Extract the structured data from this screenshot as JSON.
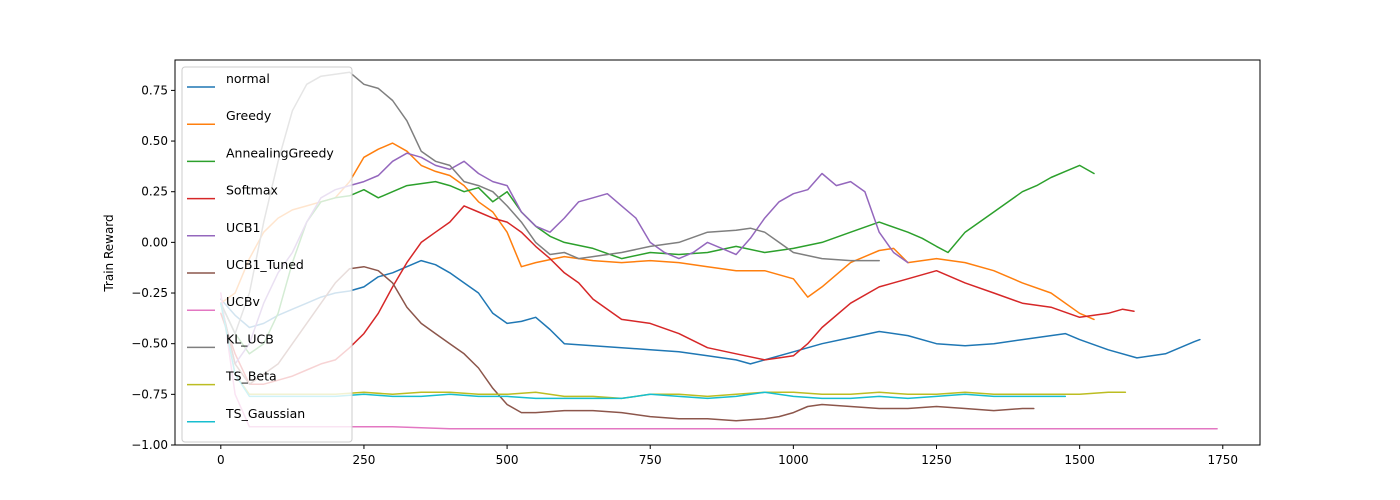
{
  "chart_data": {
    "type": "line",
    "title": "",
    "xlabel": "",
    "ylabel": "Train Reward",
    "xlim": [
      -80,
      1815
    ],
    "ylim": [
      -1.0,
      0.9
    ],
    "xticks": [
      {
        "value": 0,
        "label": "0"
      },
      {
        "value": 250,
        "label": "250"
      },
      {
        "value": 500,
        "label": "500"
      },
      {
        "value": 750,
        "label": "750"
      },
      {
        "value": 1000,
        "label": "1000"
      },
      {
        "value": 1250,
        "label": "1250"
      },
      {
        "value": 1500,
        "label": "1500"
      },
      {
        "value": 1750,
        "label": "1750"
      }
    ],
    "yticks": [
      {
        "value": -1.0,
        "label": "−1.00"
      },
      {
        "value": -0.75,
        "label": "−0.75"
      },
      {
        "value": -0.5,
        "label": "−0.50"
      },
      {
        "value": -0.25,
        "label": "−0.25"
      },
      {
        "value": 0.0,
        "label": "0.00"
      },
      {
        "value": 0.25,
        "label": "0.25"
      },
      {
        "value": 0.5,
        "label": "0.50"
      },
      {
        "value": 0.75,
        "label": "0.75"
      }
    ],
    "grid": false,
    "legend_position": "upper-left",
    "series": [
      {
        "name": "normal",
        "color": "#1f77b4",
        "x": [
          0,
          25,
          50,
          75,
          100,
          125,
          150,
          175,
          200,
          225,
          250,
          275,
          300,
          325,
          350,
          375,
          400,
          425,
          450,
          475,
          500,
          525,
          550,
          575,
          600,
          650,
          700,
          750,
          800,
          850,
          900,
          925,
          950,
          1000,
          1050,
          1100,
          1150,
          1200,
          1250,
          1300,
          1350,
          1400,
          1450,
          1475,
          1500,
          1550,
          1600,
          1650,
          1700,
          1710
        ],
        "y": [
          -0.28,
          -0.36,
          -0.42,
          -0.4,
          -0.36,
          -0.33,
          -0.3,
          -0.27,
          -0.25,
          -0.24,
          -0.22,
          -0.17,
          -0.15,
          -0.12,
          -0.09,
          -0.11,
          -0.15,
          -0.2,
          -0.25,
          -0.35,
          -0.4,
          -0.39,
          -0.37,
          -0.43,
          -0.5,
          -0.51,
          -0.52,
          -0.53,
          -0.54,
          -0.56,
          -0.58,
          -0.6,
          -0.58,
          -0.54,
          -0.5,
          -0.47,
          -0.44,
          -0.46,
          -0.5,
          -0.51,
          -0.5,
          -0.48,
          -0.46,
          -0.45,
          -0.48,
          -0.53,
          -0.57,
          -0.55,
          -0.49,
          -0.48
        ]
      },
      {
        "name": "Greedy",
        "color": "#ff7f0e",
        "x": [
          0,
          25,
          50,
          75,
          100,
          125,
          150,
          175,
          200,
          225,
          250,
          275,
          300,
          325,
          350,
          375,
          400,
          425,
          450,
          475,
          500,
          525,
          550,
          600,
          650,
          700,
          750,
          800,
          850,
          900,
          950,
          1000,
          1025,
          1050,
          1100,
          1150,
          1175,
          1200,
          1250,
          1300,
          1350,
          1400,
          1450,
          1500,
          1525
        ],
        "y": [
          -0.3,
          -0.25,
          -0.08,
          0.05,
          0.12,
          0.16,
          0.18,
          0.2,
          0.22,
          0.3,
          0.42,
          0.46,
          0.49,
          0.45,
          0.38,
          0.35,
          0.33,
          0.28,
          0.2,
          0.15,
          0.05,
          -0.12,
          -0.1,
          -0.07,
          -0.09,
          -0.1,
          -0.09,
          -0.1,
          -0.12,
          -0.14,
          -0.14,
          -0.18,
          -0.27,
          -0.22,
          -0.1,
          -0.04,
          -0.03,
          -0.1,
          -0.08,
          -0.1,
          -0.14,
          -0.2,
          -0.25,
          -0.35,
          -0.38
        ]
      },
      {
        "name": "AnnealingGreedy",
        "color": "#2ca02c",
        "x": [
          0,
          25,
          50,
          75,
          100,
          125,
          150,
          175,
          200,
          225,
          250,
          275,
          300,
          325,
          350,
          375,
          400,
          425,
          450,
          475,
          500,
          525,
          550,
          575,
          600,
          650,
          700,
          750,
          800,
          850,
          900,
          950,
          1000,
          1050,
          1100,
          1150,
          1200,
          1225,
          1250,
          1270,
          1300,
          1350,
          1400,
          1425,
          1450,
          1475,
          1500,
          1525
        ],
        "y": [
          -0.3,
          -0.45,
          -0.55,
          -0.5,
          -0.35,
          -0.1,
          0.1,
          0.2,
          0.22,
          0.23,
          0.26,
          0.22,
          0.25,
          0.28,
          0.29,
          0.3,
          0.28,
          0.25,
          0.27,
          0.2,
          0.25,
          0.15,
          0.08,
          0.03,
          0.0,
          -0.03,
          -0.08,
          -0.05,
          -0.06,
          -0.05,
          -0.02,
          -0.05,
          -0.03,
          0.0,
          0.05,
          0.1,
          0.05,
          0.02,
          -0.02,
          -0.05,
          0.05,
          0.15,
          0.25,
          0.28,
          0.32,
          0.35,
          0.38,
          0.34
        ]
      },
      {
        "name": "Softmax",
        "color": "#d62728",
        "x": [
          0,
          25,
          50,
          75,
          100,
          125,
          150,
          175,
          200,
          225,
          250,
          275,
          300,
          325,
          350,
          375,
          400,
          425,
          450,
          475,
          500,
          525,
          550,
          575,
          600,
          625,
          650,
          700,
          750,
          800,
          850,
          900,
          950,
          975,
          1000,
          1025,
          1050,
          1100,
          1150,
          1200,
          1250,
          1300,
          1350,
          1400,
          1450,
          1500,
          1550,
          1575,
          1595
        ],
        "y": [
          -0.35,
          -0.55,
          -0.7,
          -0.7,
          -0.68,
          -0.66,
          -0.63,
          -0.6,
          -0.58,
          -0.52,
          -0.45,
          -0.35,
          -0.22,
          -0.1,
          0.0,
          0.05,
          0.1,
          0.18,
          0.15,
          0.12,
          0.1,
          0.05,
          -0.02,
          -0.08,
          -0.15,
          -0.2,
          -0.28,
          -0.38,
          -0.4,
          -0.45,
          -0.52,
          -0.55,
          -0.58,
          -0.57,
          -0.56,
          -0.5,
          -0.42,
          -0.3,
          -0.22,
          -0.18,
          -0.14,
          -0.2,
          -0.25,
          -0.3,
          -0.32,
          -0.37,
          -0.35,
          -0.33,
          -0.34
        ]
      },
      {
        "name": "UCB1",
        "color": "#9467bd",
        "x": [
          0,
          25,
          50,
          75,
          100,
          125,
          150,
          175,
          200,
          225,
          250,
          275,
          300,
          325,
          350,
          375,
          400,
          425,
          450,
          475,
          500,
          525,
          550,
          575,
          600,
          625,
          650,
          675,
          700,
          725,
          750,
          775,
          800,
          825,
          850,
          875,
          900,
          925,
          950,
          975,
          1000,
          1025,
          1050,
          1075,
          1100,
          1125,
          1150,
          1175,
          1200
        ],
        "y": [
          -0.3,
          -0.6,
          -0.5,
          -0.3,
          -0.15,
          -0.05,
          0.1,
          0.22,
          0.26,
          0.28,
          0.3,
          0.33,
          0.4,
          0.44,
          0.42,
          0.38,
          0.36,
          0.4,
          0.34,
          0.3,
          0.28,
          0.15,
          0.08,
          0.05,
          0.12,
          0.2,
          0.22,
          0.24,
          0.18,
          0.12,
          0.0,
          -0.05,
          -0.08,
          -0.05,
          0.0,
          -0.03,
          -0.06,
          0.02,
          0.12,
          0.2,
          0.24,
          0.26,
          0.34,
          0.28,
          0.3,
          0.25,
          0.05,
          -0.05,
          -0.1
        ]
      },
      {
        "name": "UCB1_Tuned",
        "color": "#8c564b",
        "x": [
          0,
          25,
          50,
          75,
          100,
          125,
          150,
          175,
          200,
          225,
          250,
          275,
          300,
          325,
          350,
          375,
          400,
          425,
          450,
          475,
          500,
          525,
          550,
          600,
          650,
          700,
          750,
          800,
          850,
          900,
          950,
          975,
          1000,
          1025,
          1050,
          1100,
          1150,
          1200,
          1250,
          1300,
          1350,
          1400,
          1420
        ],
        "y": [
          -0.3,
          -0.6,
          -0.7,
          -0.65,
          -0.6,
          -0.5,
          -0.4,
          -0.3,
          -0.2,
          -0.13,
          -0.12,
          -0.14,
          -0.2,
          -0.32,
          -0.4,
          -0.45,
          -0.5,
          -0.55,
          -0.62,
          -0.72,
          -0.8,
          -0.84,
          -0.84,
          -0.83,
          -0.83,
          -0.84,
          -0.86,
          -0.87,
          -0.87,
          -0.88,
          -0.87,
          -0.86,
          -0.84,
          -0.81,
          -0.8,
          -0.81,
          -0.82,
          -0.82,
          -0.81,
          -0.82,
          -0.83,
          -0.82,
          -0.82
        ]
      },
      {
        "name": "UCBv",
        "color": "#e377c2",
        "x": [
          0,
          25,
          50,
          100,
          200,
          300,
          400,
          500,
          700,
          900,
          1100,
          1300,
          1500,
          1700,
          1740
        ],
        "y": [
          -0.25,
          -0.75,
          -0.91,
          -0.91,
          -0.91,
          -0.91,
          -0.92,
          -0.92,
          -0.92,
          -0.92,
          -0.92,
          -0.92,
          -0.92,
          -0.92,
          -0.92
        ]
      },
      {
        "name": "KL_UCB",
        "color": "#7f7f7f",
        "x": [
          0,
          25,
          50,
          75,
          100,
          125,
          150,
          175,
          200,
          225,
          250,
          275,
          300,
          325,
          350,
          375,
          400,
          425,
          450,
          475,
          500,
          525,
          550,
          575,
          600,
          625,
          650,
          700,
          750,
          800,
          850,
          900,
          925,
          950,
          975,
          1000,
          1050,
          1100,
          1150
        ],
        "y": [
          -0.3,
          -0.45,
          -0.25,
          0.1,
          0.4,
          0.65,
          0.78,
          0.82,
          0.83,
          0.84,
          0.78,
          0.76,
          0.7,
          0.6,
          0.45,
          0.4,
          0.38,
          0.3,
          0.28,
          0.25,
          0.18,
          0.1,
          0.0,
          -0.06,
          -0.05,
          -0.08,
          -0.07,
          -0.05,
          -0.02,
          0.0,
          0.05,
          0.06,
          0.07,
          0.05,
          0.0,
          -0.05,
          -0.08,
          -0.09,
          -0.09
        ]
      },
      {
        "name": "TS_Beta",
        "color": "#bcbd22",
        "x": [
          0,
          25,
          50,
          100,
          150,
          200,
          250,
          300,
          350,
          400,
          450,
          500,
          550,
          600,
          650,
          700,
          750,
          800,
          850,
          900,
          950,
          1000,
          1050,
          1100,
          1150,
          1200,
          1250,
          1300,
          1350,
          1400,
          1450,
          1500,
          1550,
          1580
        ],
        "y": [
          -0.3,
          -0.65,
          -0.75,
          -0.75,
          -0.75,
          -0.75,
          -0.74,
          -0.75,
          -0.74,
          -0.74,
          -0.75,
          -0.75,
          -0.74,
          -0.76,
          -0.76,
          -0.77,
          -0.75,
          -0.75,
          -0.76,
          -0.75,
          -0.74,
          -0.74,
          -0.75,
          -0.75,
          -0.74,
          -0.75,
          -0.75,
          -0.74,
          -0.75,
          -0.75,
          -0.75,
          -0.75,
          -0.74,
          -0.74
        ]
      },
      {
        "name": "TS_Gaussian",
        "color": "#17becf",
        "x": [
          0,
          25,
          50,
          100,
          150,
          200,
          250,
          300,
          350,
          400,
          450,
          500,
          550,
          600,
          650,
          700,
          750,
          800,
          850,
          900,
          950,
          1000,
          1050,
          1100,
          1150,
          1200,
          1250,
          1300,
          1350,
          1400,
          1450,
          1475
        ],
        "y": [
          -0.3,
          -0.65,
          -0.76,
          -0.76,
          -0.76,
          -0.76,
          -0.75,
          -0.76,
          -0.76,
          -0.75,
          -0.76,
          -0.76,
          -0.77,
          -0.77,
          -0.77,
          -0.77,
          -0.75,
          -0.76,
          -0.77,
          -0.76,
          -0.74,
          -0.76,
          -0.77,
          -0.77,
          -0.76,
          -0.77,
          -0.76,
          -0.75,
          -0.76,
          -0.76,
          -0.76,
          -0.76
        ]
      }
    ]
  }
}
